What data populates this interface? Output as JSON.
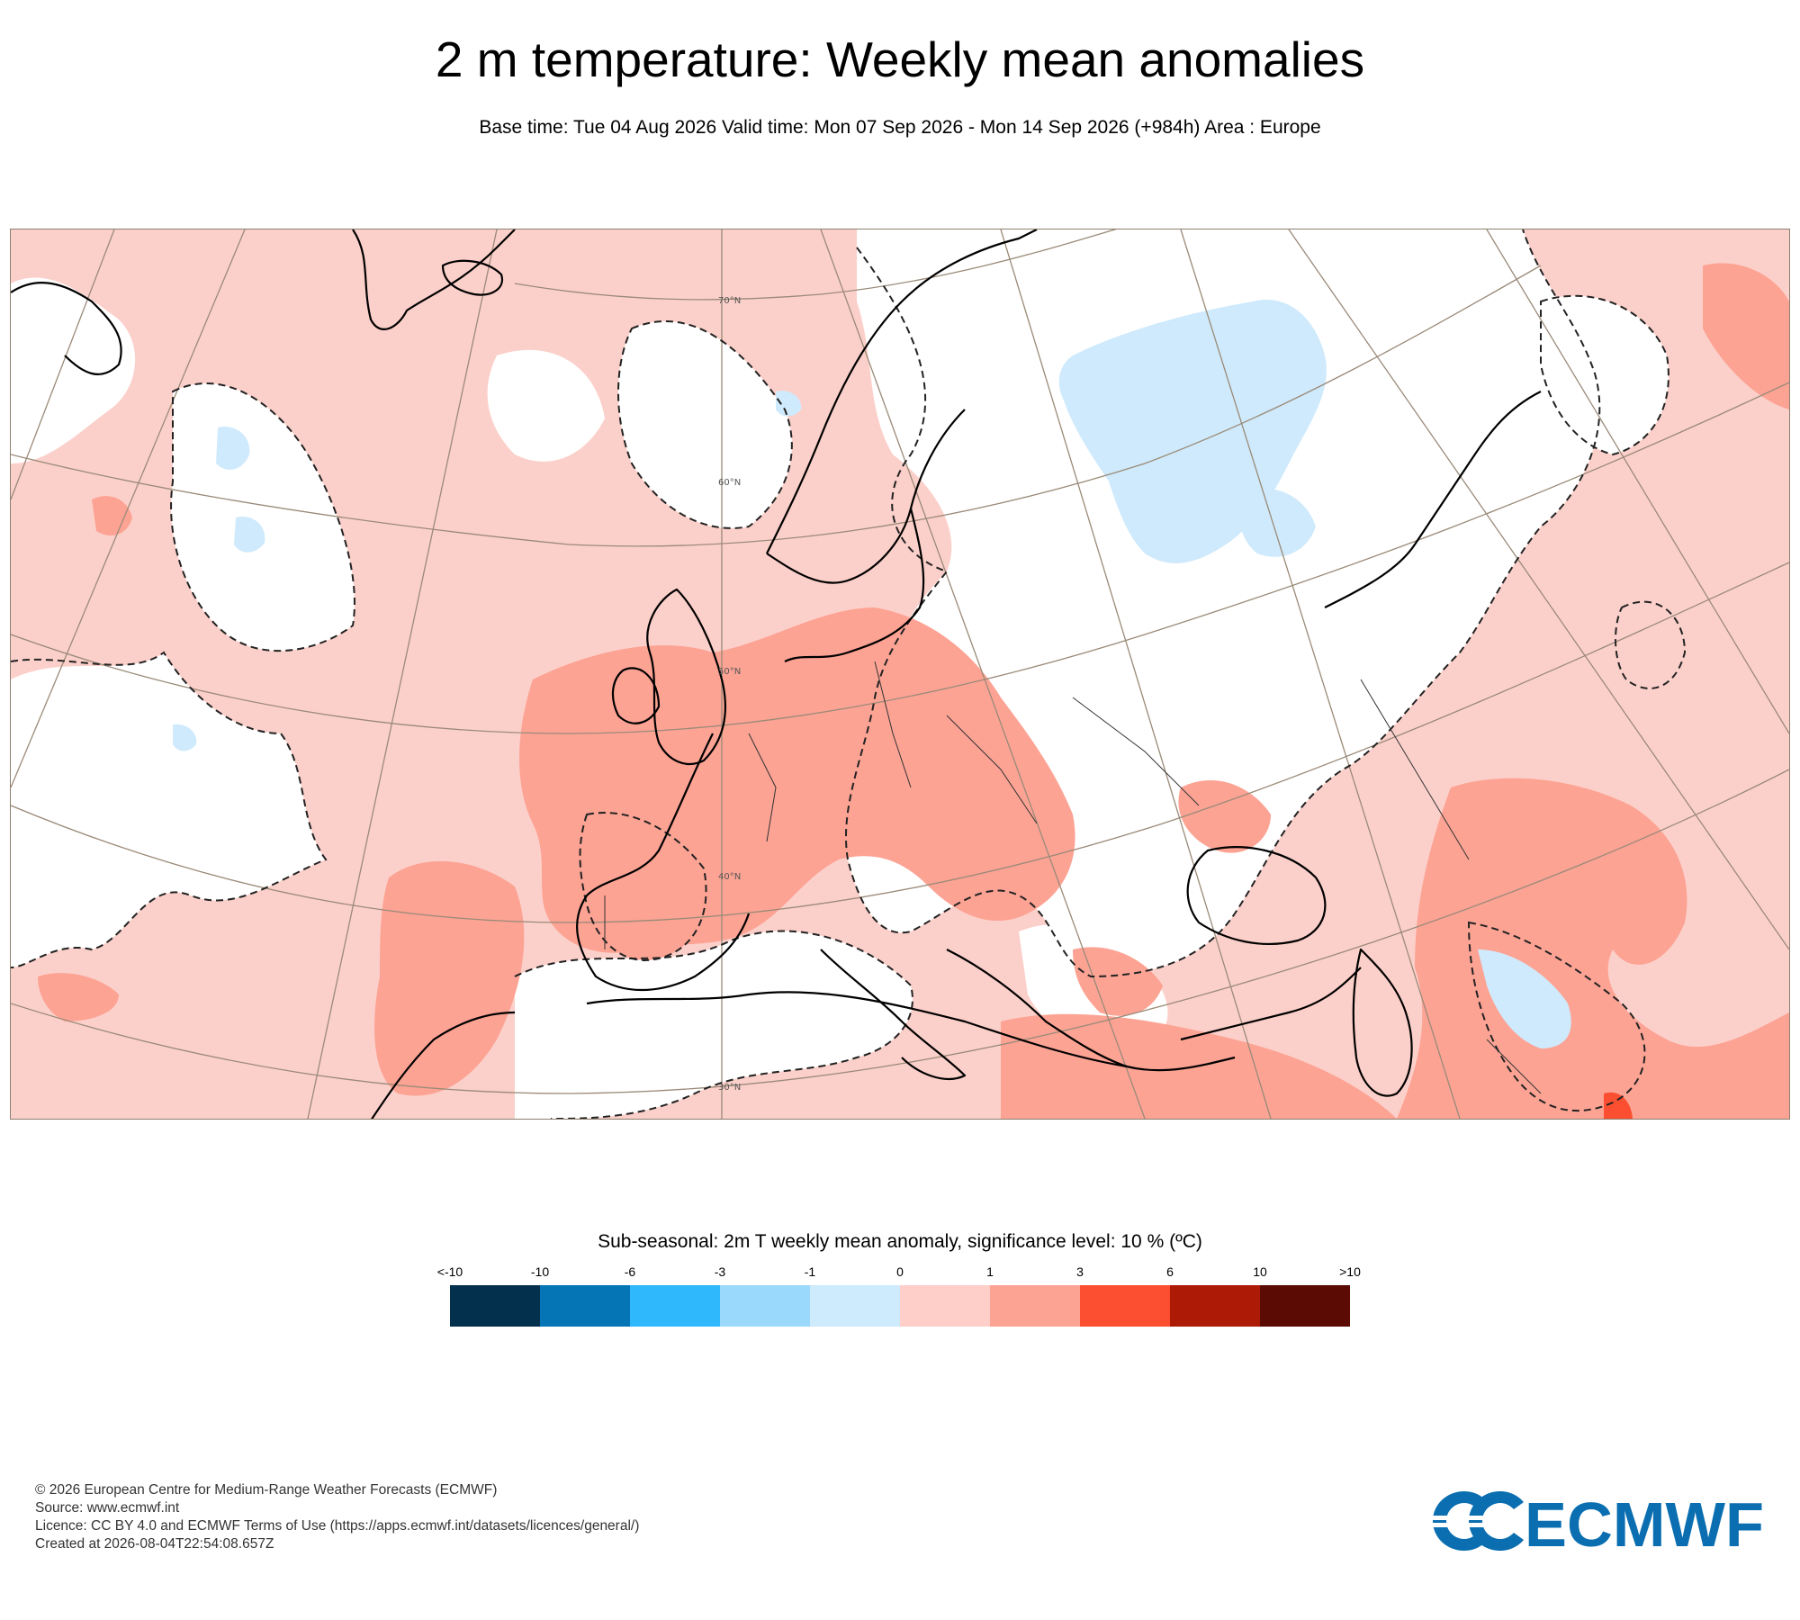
{
  "title": "2 m temperature: Weekly mean anomalies",
  "subtitle": "Base time: Tue 04 Aug 2026 Valid time: Mon 07 Sep 2026 - Mon 14 Sep 2026 (+984h) Area : Europe",
  "map": {
    "latitude_labels": [
      "70°N",
      "60°N",
      "50°N",
      "40°N",
      "30°N"
    ],
    "colors": {
      "ocean_default": "#fcd0ca",
      "warm_1_3": "#fca394",
      "warm_3_6": "#fc4f31",
      "neutral": "#ffffff",
      "cool_0_1": "#cfeafc",
      "coast": "#000000",
      "grid": "#9a8a78"
    }
  },
  "legend": {
    "title": "Sub-seasonal: 2m T weekly mean anomaly, significance level: 10 % (ºC)",
    "ticks": [
      "<-10",
      "-10",
      "-6",
      "-3",
      "-1",
      "0",
      "1",
      "3",
      "6",
      "10",
      ">10"
    ],
    "colors": [
      "#03304d",
      "#0575b5",
      "#2fb8fc",
      "#9bd9fc",
      "#cdebfc",
      "#fdcfc8",
      "#fca394",
      "#fc4f31",
      "#ad1a06",
      "#5b0a04"
    ]
  },
  "credits": {
    "line1": "© 2026 European Centre for Medium-Range Weather Forecasts (ECMWF)",
    "line2": "Source: www.ecmwf.int",
    "line3": "Licence: CC BY 4.0 and ECMWF Terms of Use (https://apps.ecmwf.int/datasets/licences/general/)",
    "line4": "Created at 2026-08-04T22:54:08.657Z"
  },
  "logo": {
    "text": "ECMWF",
    "color": "#0a6eb0"
  }
}
